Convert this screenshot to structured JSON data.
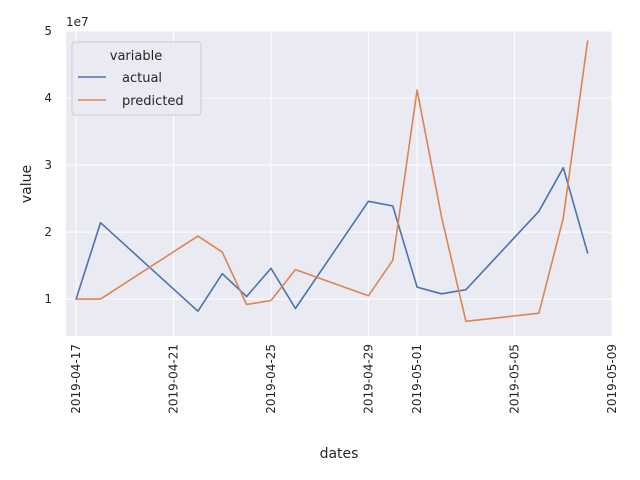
{
  "chart_data": {
    "type": "line",
    "xlabel": "dates",
    "ylabel": "value",
    "y_scale_label": "1e7",
    "legend_title": "variable",
    "legend_position": "top-left",
    "grid": true,
    "xlim": [
      "2019-04-16T14:00",
      "2019-05-09"
    ],
    "ylim": [
      4500000,
      50000000
    ],
    "x_ticks": [
      "2019-04-17",
      "2019-04-21",
      "2019-04-25",
      "2019-04-29",
      "2019-05-01",
      "2019-05-05",
      "2019-05-09"
    ],
    "y_ticks": [
      {
        "value": 10000000,
        "label": "1"
      },
      {
        "value": 20000000,
        "label": "2"
      },
      {
        "value": 30000000,
        "label": "3"
      },
      {
        "value": 40000000,
        "label": "4"
      },
      {
        "value": 50000000,
        "label": "5"
      }
    ],
    "x": [
      "2019-04-17",
      "2019-04-18",
      "2019-04-22",
      "2019-04-23",
      "2019-04-24",
      "2019-04-25",
      "2019-04-26",
      "2019-04-29",
      "2019-04-30",
      "2019-05-01",
      "2019-05-02",
      "2019-05-03",
      "2019-05-06",
      "2019-05-07",
      "2019-05-08"
    ],
    "series": [
      {
        "name": "actual",
        "color": "#4c72b0",
        "values": [
          10000000,
          21400000,
          8200000,
          13800000,
          10400000,
          14600000,
          8600000,
          24600000,
          23900000,
          11800000,
          10800000,
          11400000,
          23100000,
          29600000,
          16900000
        ]
      },
      {
        "name": "predicted",
        "color": "#dd8452",
        "values": [
          10000000,
          10000000,
          19400000,
          17000000,
          9200000,
          9800000,
          14400000,
          10500000,
          15800000,
          41200000,
          22300000,
          6700000,
          7900000,
          22100000,
          48500000
        ]
      }
    ]
  }
}
